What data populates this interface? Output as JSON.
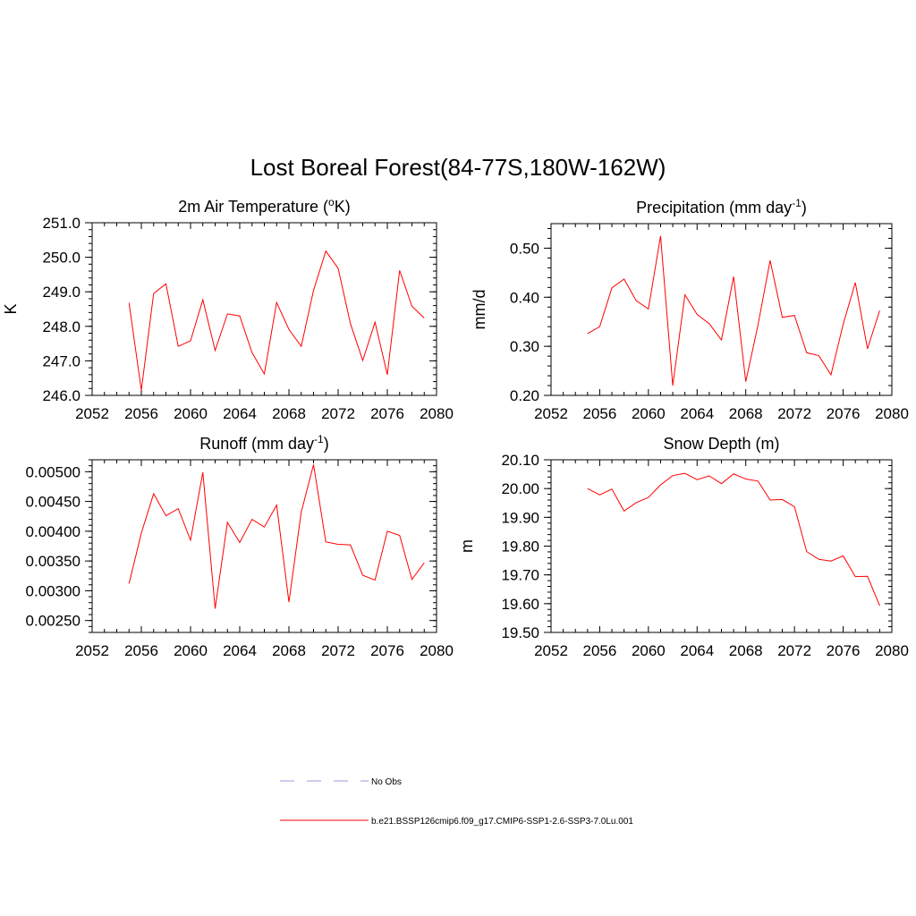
{
  "title": "Lost Boreal Forest(84-77S,180W-162W)",
  "series_color": "#ff0000",
  "obs_color": "#9999dd",
  "legend": {
    "obs_label": "No Obs",
    "model_label": "b.e21.BSSP126cmip6.f09_g17.CMIP6-SSP1-2.6-SSP3-7.0Lu.001"
  },
  "chart_data": [
    {
      "type": "line",
      "title_main": "2m Air Temperature (",
      "title_sup1": "o",
      "title_rest": "K)",
      "title_sup2": "",
      "title_end": "",
      "ylabel": "K",
      "xlim": [
        2052,
        2080
      ],
      "ylim": [
        246.0,
        251.0
      ],
      "xticks": [
        2052,
        2056,
        2060,
        2064,
        2068,
        2072,
        2076,
        2080
      ],
      "yticks": [
        246.0,
        247.0,
        248.0,
        249.0,
        250.0,
        251.0
      ],
      "ytick_labels": [
        "246.0",
        "247.0",
        "248.0",
        "249.0",
        "250.0",
        "251.0"
      ],
      "ylim_minor_step": 0.2,
      "x": [
        2055,
        2056,
        2057,
        2058,
        2059,
        2060,
        2061,
        2062,
        2063,
        2064,
        2065,
        2066,
        2067,
        2068,
        2069,
        2070,
        2071,
        2072,
        2073,
        2074,
        2075,
        2076,
        2077,
        2078,
        2079
      ],
      "values": [
        248.68,
        246.15,
        248.95,
        249.23,
        247.42,
        247.58,
        248.77,
        247.3,
        248.36,
        248.3,
        247.24,
        246.62,
        248.69,
        247.91,
        247.42,
        249.04,
        250.18,
        249.68,
        248.08,
        247.01,
        248.12,
        246.6,
        249.62,
        248.58,
        248.24
      ]
    },
    {
      "type": "line",
      "title_main": "Precipitation (mm day",
      "title_sup1": "-1",
      "title_rest": ")",
      "title_sup2": "",
      "title_end": "",
      "ylabel": "mm/d",
      "xlim": [
        2052,
        2080
      ],
      "ylim": [
        0.2,
        0.55
      ],
      "xticks": [
        2052,
        2056,
        2060,
        2064,
        2068,
        2072,
        2076,
        2080
      ],
      "yticks": [
        0.2,
        0.3,
        0.4,
        0.5
      ],
      "ytick_labels": [
        "0.20",
        "0.30",
        "0.40",
        "0.50"
      ],
      "ylim_minor_step": 0.02,
      "x": [
        2055,
        2056,
        2057,
        2058,
        2059,
        2060,
        2061,
        2062,
        2063,
        2064,
        2065,
        2066,
        2067,
        2068,
        2069,
        2070,
        2071,
        2072,
        2073,
        2074,
        2075,
        2076,
        2077,
        2078,
        2079
      ],
      "values": [
        0.326,
        0.34,
        0.419,
        0.437,
        0.393,
        0.376,
        0.525,
        0.22,
        0.405,
        0.365,
        0.346,
        0.313,
        0.442,
        0.228,
        0.343,
        0.475,
        0.359,
        0.363,
        0.287,
        0.281,
        0.242,
        0.345,
        0.43,
        0.295,
        0.373
      ]
    },
    {
      "type": "line",
      "title_main": "Runoff (mm day",
      "title_sup1": "-1",
      "title_rest": ")",
      "title_sup2": "",
      "title_end": "",
      "ylabel": "",
      "xlim": [
        2052,
        2080
      ],
      "ylim": [
        0.0023,
        0.0052
      ],
      "xticks": [
        2052,
        2056,
        2060,
        2064,
        2068,
        2072,
        2076,
        2080
      ],
      "yticks": [
        0.0025,
        0.003,
        0.0035,
        0.004,
        0.0045,
        0.005
      ],
      "ytick_labels": [
        "0.00250",
        "0.00300",
        "0.00350",
        "0.00400",
        "0.00450",
        "0.00500"
      ],
      "ylim_minor_step": 0.0001,
      "x": [
        2055,
        2056,
        2057,
        2058,
        2059,
        2060,
        2061,
        2062,
        2063,
        2064,
        2065,
        2066,
        2067,
        2068,
        2069,
        2070,
        2071,
        2072,
        2073,
        2074,
        2075,
        2076,
        2077,
        2078,
        2079
      ],
      "values": [
        0.00312,
        0.00397,
        0.00463,
        0.00426,
        0.00438,
        0.00385,
        0.00499,
        0.0027,
        0.00415,
        0.00381,
        0.0042,
        0.00407,
        0.00444,
        0.00281,
        0.00432,
        0.00512,
        0.00382,
        0.00378,
        0.00377,
        0.00326,
        0.00318,
        0.004,
        0.00393,
        0.00319,
        0.00347
      ]
    },
    {
      "type": "line",
      "title_main": "Snow Depth (m)",
      "title_sup1": "",
      "title_rest": "",
      "title_sup2": "",
      "title_end": "",
      "ylabel": "m",
      "xlim": [
        2052,
        2080
      ],
      "ylim": [
        19.5,
        20.1
      ],
      "xticks": [
        2052,
        2056,
        2060,
        2064,
        2068,
        2072,
        2076,
        2080
      ],
      "yticks": [
        19.5,
        19.6,
        19.7,
        19.8,
        19.9,
        20.0,
        20.1
      ],
      "ytick_labels": [
        "19.50",
        "19.60",
        "19.70",
        "19.80",
        "19.90",
        "20.00",
        "20.10"
      ],
      "ylim_minor_step": 0.02,
      "x": [
        2055,
        2056,
        2057,
        2058,
        2059,
        2060,
        2061,
        2062,
        2063,
        2064,
        2065,
        2066,
        2067,
        2068,
        2069,
        2070,
        2071,
        2072,
        2073,
        2074,
        2075,
        2076,
        2077,
        2078,
        2079
      ],
      "values": [
        20.0,
        19.978,
        19.998,
        19.922,
        19.951,
        19.969,
        20.013,
        20.045,
        20.053,
        20.031,
        20.044,
        20.017,
        20.051,
        20.033,
        20.026,
        19.96,
        19.962,
        19.937,
        19.781,
        19.754,
        19.748,
        19.766,
        19.694,
        19.695,
        19.593
      ]
    }
  ]
}
